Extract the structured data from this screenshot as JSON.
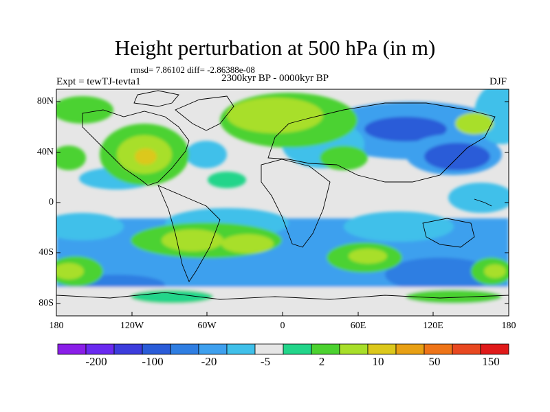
{
  "title": "Height perturbation at 500 hPa (in m)",
  "stats": "rmsd= 7.86102 diff= -2.86388e-08",
  "left_label": "Expt = tewTJ-tevta1",
  "center_label": "2300kyr BP - 0000kyr BP",
  "right_label": "DJF",
  "map": {
    "projection": "cylindrical equidistant",
    "lon_range": [
      -180,
      180
    ],
    "lat_range": [
      -90,
      90
    ],
    "lat_ticks": [
      "80N",
      "40N",
      "0",
      "40S",
      "80S"
    ],
    "lon_ticks": [
      "180",
      "120W",
      "60W",
      "0",
      "60E",
      "120E",
      "180"
    ],
    "background_color": "#e6e6e6",
    "coastline_color": "#000000"
  },
  "colorbar": {
    "colors": [
      "#8a1ee8",
      "#6a2af0",
      "#3c3cdc",
      "#2a5cd8",
      "#2f7ee2",
      "#3ea0ee",
      "#40c0ea",
      "#e6e6e6",
      "#22d58a",
      "#4cd230",
      "#a8df2a",
      "#dcc81c",
      "#e8a014",
      "#ee7418",
      "#e84820",
      "#e01a1a"
    ],
    "tick_labels": [
      "-200",
      "-100",
      "-20",
      "-5",
      "2",
      "10",
      "50",
      "150"
    ]
  },
  "chart_data": {
    "type": "heatmap",
    "variable": "Height perturbation at 500 hPa",
    "units": "m",
    "season": "DJF",
    "levels": [
      -200,
      -100,
      -20,
      -5,
      2,
      10,
      50,
      150
    ],
    "regions": [
      {
        "area": "North America interior",
        "level": "yellow-orange"
      },
      {
        "area": "North Atlantic / Greenland",
        "level": "yellow-green"
      },
      {
        "area": "Northern Eurasia",
        "level": "blue"
      },
      {
        "area": "East Asia / NW Pacific",
        "level": "dark blue"
      },
      {
        "area": "Bering Sea",
        "level": "yellow-green"
      },
      {
        "area": "Southern subtropics",
        "level": "green-yellow"
      },
      {
        "area": "Southern Ocean",
        "level": "blue"
      }
    ]
  }
}
